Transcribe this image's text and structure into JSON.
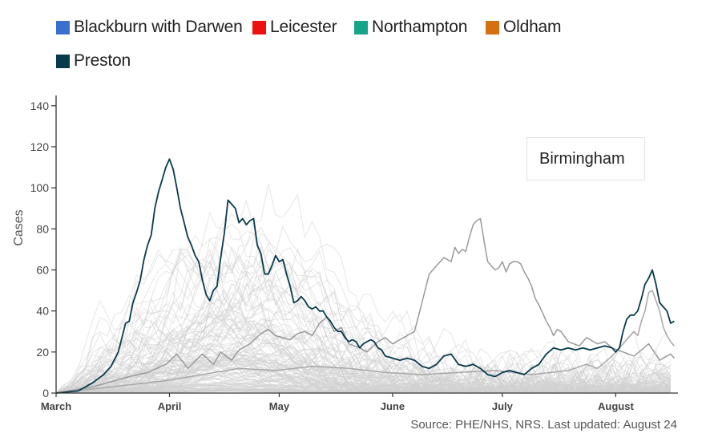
{
  "legend": [
    {
      "label": "Blackburn with Darwen",
      "color": "#3a6fd0"
    },
    {
      "label": "Leicester",
      "color": "#ee1111"
    },
    {
      "label": "Northampton",
      "color": "#17a589"
    },
    {
      "label": "Oldham",
      "color": "#d4700f"
    },
    {
      "label": "Preston",
      "color": "#073b4c"
    }
  ],
  "search": {
    "value": "Birmingham"
  },
  "source": "Source: PHE/NHS, NRS. Last updated: August 24",
  "chart_data": {
    "type": "line",
    "xlabel": "",
    "ylabel": "Cases",
    "ylim": [
      0,
      145
    ],
    "yticks": [
      0,
      20,
      40,
      60,
      80,
      100,
      120,
      140
    ],
    "x_start": "March 1",
    "x_end": "August 22",
    "month_labels": [
      {
        "label": "March",
        "day": 0
      },
      {
        "label": "April",
        "day": 31
      },
      {
        "label": "May",
        "day": 61
      },
      {
        "label": "June",
        "day": 92
      },
      {
        "label": "July",
        "day": 122
      },
      {
        "label": "August",
        "day": 153
      }
    ],
    "highlight_color": "#073b4c",
    "background_color": "#c8c8c8",
    "series": [
      {
        "name": "Preston",
        "color": "#073b4c",
        "points": [
          [
            0,
            0
          ],
          [
            6,
            1
          ],
          [
            10,
            5
          ],
          [
            13,
            9
          ],
          [
            15,
            13
          ],
          [
            17,
            20
          ],
          [
            18,
            27
          ],
          [
            19,
            34
          ],
          [
            20,
            35
          ],
          [
            21,
            44
          ],
          [
            22,
            49
          ],
          [
            23,
            55
          ],
          [
            24,
            65
          ],
          [
            25,
            72
          ],
          [
            26,
            77
          ],
          [
            27,
            90
          ],
          [
            28,
            98
          ],
          [
            29,
            104
          ],
          [
            30,
            110
          ],
          [
            31,
            114
          ],
          [
            32,
            109
          ],
          [
            33,
            100
          ],
          [
            34,
            90
          ],
          [
            35,
            83
          ],
          [
            36,
            76
          ],
          [
            37,
            72
          ],
          [
            38,
            67
          ],
          [
            39,
            64
          ],
          [
            40,
            55
          ],
          [
            41,
            48
          ],
          [
            42,
            45
          ],
          [
            43,
            50
          ],
          [
            44,
            52
          ],
          [
            45,
            66
          ],
          [
            46,
            78
          ],
          [
            47,
            94
          ],
          [
            48,
            92
          ],
          [
            49,
            90
          ],
          [
            50,
            83
          ],
          [
            51,
            85
          ],
          [
            52,
            82
          ],
          [
            53,
            84
          ],
          [
            54,
            85
          ],
          [
            55,
            72
          ],
          [
            56,
            68
          ],
          [
            57,
            58
          ],
          [
            58,
            58
          ],
          [
            59,
            62
          ],
          [
            60,
            67
          ],
          [
            61,
            64
          ],
          [
            62,
            65
          ],
          [
            63,
            58
          ],
          [
            64,
            52
          ],
          [
            65,
            44
          ],
          [
            66,
            45
          ],
          [
            67,
            47
          ],
          [
            68,
            45
          ],
          [
            69,
            42
          ],
          [
            70,
            41
          ],
          [
            71,
            42
          ],
          [
            72,
            40
          ],
          [
            73,
            40
          ],
          [
            74,
            37
          ],
          [
            75,
            35
          ],
          [
            76,
            32
          ],
          [
            77,
            30
          ],
          [
            78,
            30
          ],
          [
            79,
            27
          ],
          [
            80,
            25
          ],
          [
            81,
            26
          ],
          [
            82,
            25
          ],
          [
            83,
            22
          ],
          [
            84,
            24
          ],
          [
            85,
            25
          ],
          [
            86,
            26
          ],
          [
            87,
            25
          ],
          [
            88,
            22
          ],
          [
            89,
            21
          ],
          [
            90,
            18
          ],
          [
            92,
            17
          ],
          [
            94,
            16
          ],
          [
            96,
            17
          ],
          [
            98,
            16
          ],
          [
            100,
            13
          ],
          [
            102,
            12
          ],
          [
            104,
            14
          ],
          [
            106,
            18
          ],
          [
            108,
            19
          ],
          [
            110,
            14
          ],
          [
            112,
            13
          ],
          [
            114,
            14
          ],
          [
            116,
            12
          ],
          [
            118,
            9
          ],
          [
            120,
            8
          ],
          [
            122,
            10
          ],
          [
            124,
            11
          ],
          [
            126,
            10
          ],
          [
            128,
            9
          ],
          [
            130,
            12
          ],
          [
            132,
            14
          ],
          [
            134,
            19
          ],
          [
            136,
            22
          ],
          [
            138,
            21
          ],
          [
            140,
            22
          ],
          [
            142,
            21
          ],
          [
            144,
            22
          ],
          [
            146,
            21
          ],
          [
            148,
            22
          ],
          [
            150,
            23
          ],
          [
            152,
            22
          ],
          [
            153,
            20
          ],
          [
            154,
            22
          ],
          [
            155,
            30
          ],
          [
            156,
            36
          ],
          [
            157,
            38
          ],
          [
            158,
            38
          ],
          [
            159,
            40
          ],
          [
            160,
            46
          ],
          [
            161,
            53
          ],
          [
            162,
            56
          ],
          [
            163,
            60
          ],
          [
            164,
            53
          ],
          [
            165,
            44
          ],
          [
            166,
            42
          ],
          [
            167,
            40
          ],
          [
            168,
            34
          ],
          [
            169,
            35
          ]
        ]
      },
      {
        "name": "Leicester",
        "color": "#9a9a9a",
        "points": [
          [
            0,
            0
          ],
          [
            10,
            3
          ],
          [
            20,
            8
          ],
          [
            25,
            10
          ],
          [
            30,
            14
          ],
          [
            33,
            19
          ],
          [
            36,
            12
          ],
          [
            40,
            19
          ],
          [
            43,
            14
          ],
          [
            45,
            20
          ],
          [
            48,
            16
          ],
          [
            50,
            21
          ],
          [
            53,
            24
          ],
          [
            56,
            29
          ],
          [
            58,
            31
          ],
          [
            60,
            28
          ],
          [
            62,
            27
          ],
          [
            64,
            26
          ],
          [
            66,
            29
          ],
          [
            68,
            30
          ],
          [
            70,
            28
          ],
          [
            72,
            34
          ],
          [
            74,
            37
          ],
          [
            76,
            30
          ],
          [
            78,
            32
          ],
          [
            80,
            24
          ],
          [
            83,
            22
          ],
          [
            85,
            20
          ],
          [
            88,
            25
          ],
          [
            90,
            27
          ],
          [
            92,
            24
          ],
          [
            95,
            27
          ],
          [
            98,
            30
          ],
          [
            100,
            44
          ],
          [
            102,
            58
          ],
          [
            104,
            62
          ],
          [
            106,
            66
          ],
          [
            108,
            64
          ],
          [
            109,
            71
          ],
          [
            110,
            68
          ],
          [
            111,
            70
          ],
          [
            112,
            69
          ],
          [
            113,
            76
          ],
          [
            114,
            82
          ],
          [
            115,
            84
          ],
          [
            116,
            85
          ],
          [
            117,
            74
          ],
          [
            118,
            64
          ],
          [
            119,
            62
          ],
          [
            120,
            60
          ],
          [
            121,
            61
          ],
          [
            122,
            64
          ],
          [
            123,
            59
          ],
          [
            124,
            63
          ],
          [
            125,
            64
          ],
          [
            126,
            64
          ],
          [
            127,
            63
          ],
          [
            128,
            59
          ],
          [
            129,
            56
          ],
          [
            130,
            52
          ],
          [
            131,
            46
          ],
          [
            132,
            43
          ],
          [
            133,
            39
          ],
          [
            134,
            35
          ],
          [
            135,
            32
          ],
          [
            136,
            28
          ],
          [
            137,
            31
          ],
          [
            138,
            30
          ],
          [
            140,
            25
          ],
          [
            143,
            23
          ],
          [
            145,
            27
          ],
          [
            148,
            24
          ],
          [
            150,
            25
          ],
          [
            152,
            22
          ],
          [
            155,
            20
          ],
          [
            158,
            18
          ],
          [
            160,
            21
          ],
          [
            162,
            24
          ],
          [
            165,
            16
          ],
          [
            168,
            19
          ],
          [
            169,
            17
          ]
        ]
      },
      {
        "name": "Oldham",
        "color": "#a7a7a7",
        "points": [
          [
            0,
            0
          ],
          [
            10,
            2
          ],
          [
            20,
            4
          ],
          [
            30,
            6
          ],
          [
            40,
            9
          ],
          [
            50,
            12
          ],
          [
            60,
            11
          ],
          [
            70,
            13
          ],
          [
            80,
            12
          ],
          [
            90,
            10
          ],
          [
            100,
            9
          ],
          [
            110,
            10
          ],
          [
            120,
            11
          ],
          [
            130,
            9
          ],
          [
            140,
            11
          ],
          [
            145,
            14
          ],
          [
            148,
            12
          ],
          [
            150,
            15
          ],
          [
            152,
            18
          ],
          [
            154,
            22
          ],
          [
            156,
            26
          ],
          [
            158,
            30
          ],
          [
            159,
            28
          ],
          [
            160,
            35
          ],
          [
            161,
            40
          ],
          [
            162,
            49
          ],
          [
            163,
            50
          ],
          [
            164,
            45
          ],
          [
            165,
            40
          ],
          [
            166,
            32
          ],
          [
            167,
            28
          ],
          [
            168,
            25
          ],
          [
            169,
            23
          ]
        ]
      }
    ]
  }
}
